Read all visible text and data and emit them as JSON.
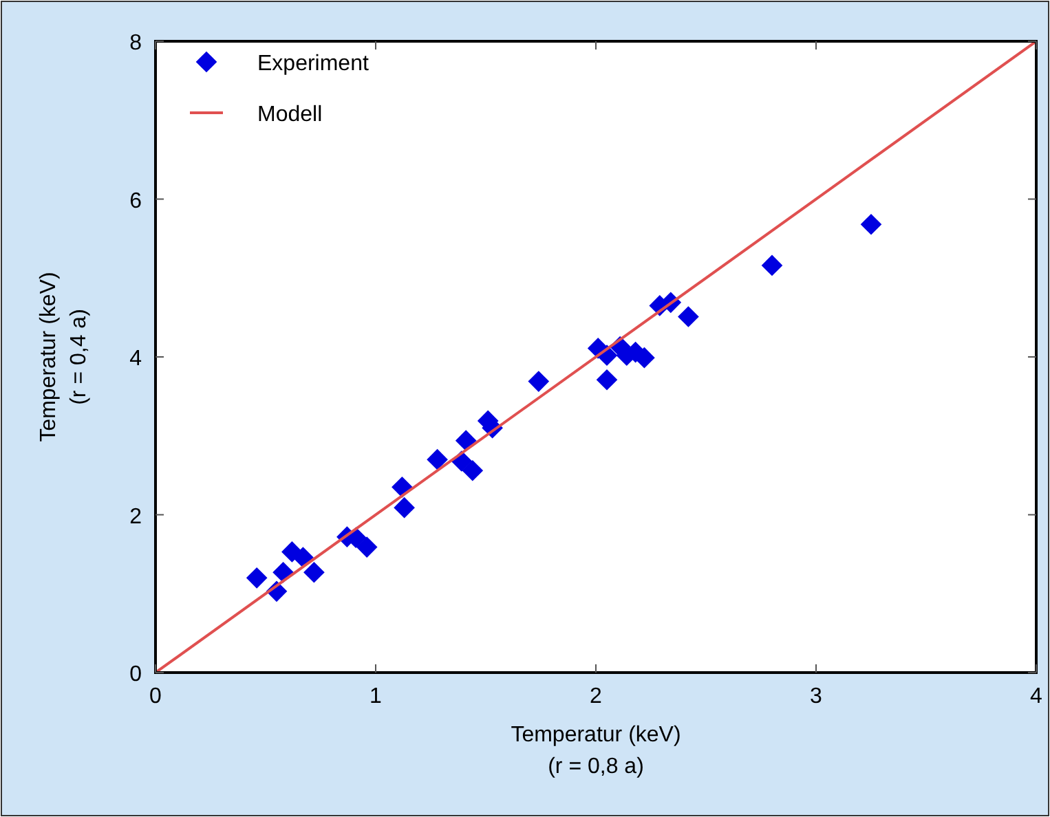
{
  "chart_data": {
    "type": "scatter",
    "xlabel": "Temperatur (keV)\n(r = 0,8 a)",
    "ylabel": "Temperatur (keV)\n(r = 0,4 a)",
    "xlim": [
      0,
      4
    ],
    "ylim": [
      0,
      8
    ],
    "xticks": [
      0,
      1,
      2,
      3,
      4
    ],
    "yticks": [
      0,
      2,
      4,
      6,
      8
    ],
    "grid": false,
    "legend": "top left",
    "series": [
      {
        "name": "Experiment",
        "color": "#0000e0",
        "marker": "diamond",
        "x": [
          0.46,
          0.55,
          0.58,
          0.62,
          0.67,
          0.72,
          0.87,
          0.91,
          0.96,
          1.12,
          1.13,
          1.28,
          1.39,
          1.41,
          1.44,
          1.51,
          1.53,
          1.74,
          2.01,
          2.05,
          2.05,
          2.11,
          2.14,
          2.18,
          2.22,
          2.29,
          2.34,
          2.42,
          2.8,
          3.25
        ],
        "values": [
          1.2,
          1.03,
          1.27,
          1.53,
          1.46,
          1.27,
          1.72,
          1.71,
          1.59,
          2.35,
          2.09,
          2.7,
          2.68,
          2.94,
          2.56,
          3.19,
          3.1,
          3.69,
          4.11,
          4.02,
          3.71,
          4.13,
          4.02,
          4.06,
          3.99,
          4.65,
          4.69,
          4.51,
          5.16,
          5.68
        ]
      },
      {
        "name": "Modell",
        "type": "line",
        "color": "#e05050",
        "x": [
          0,
          4
        ],
        "values": [
          0,
          8
        ]
      }
    ]
  }
}
